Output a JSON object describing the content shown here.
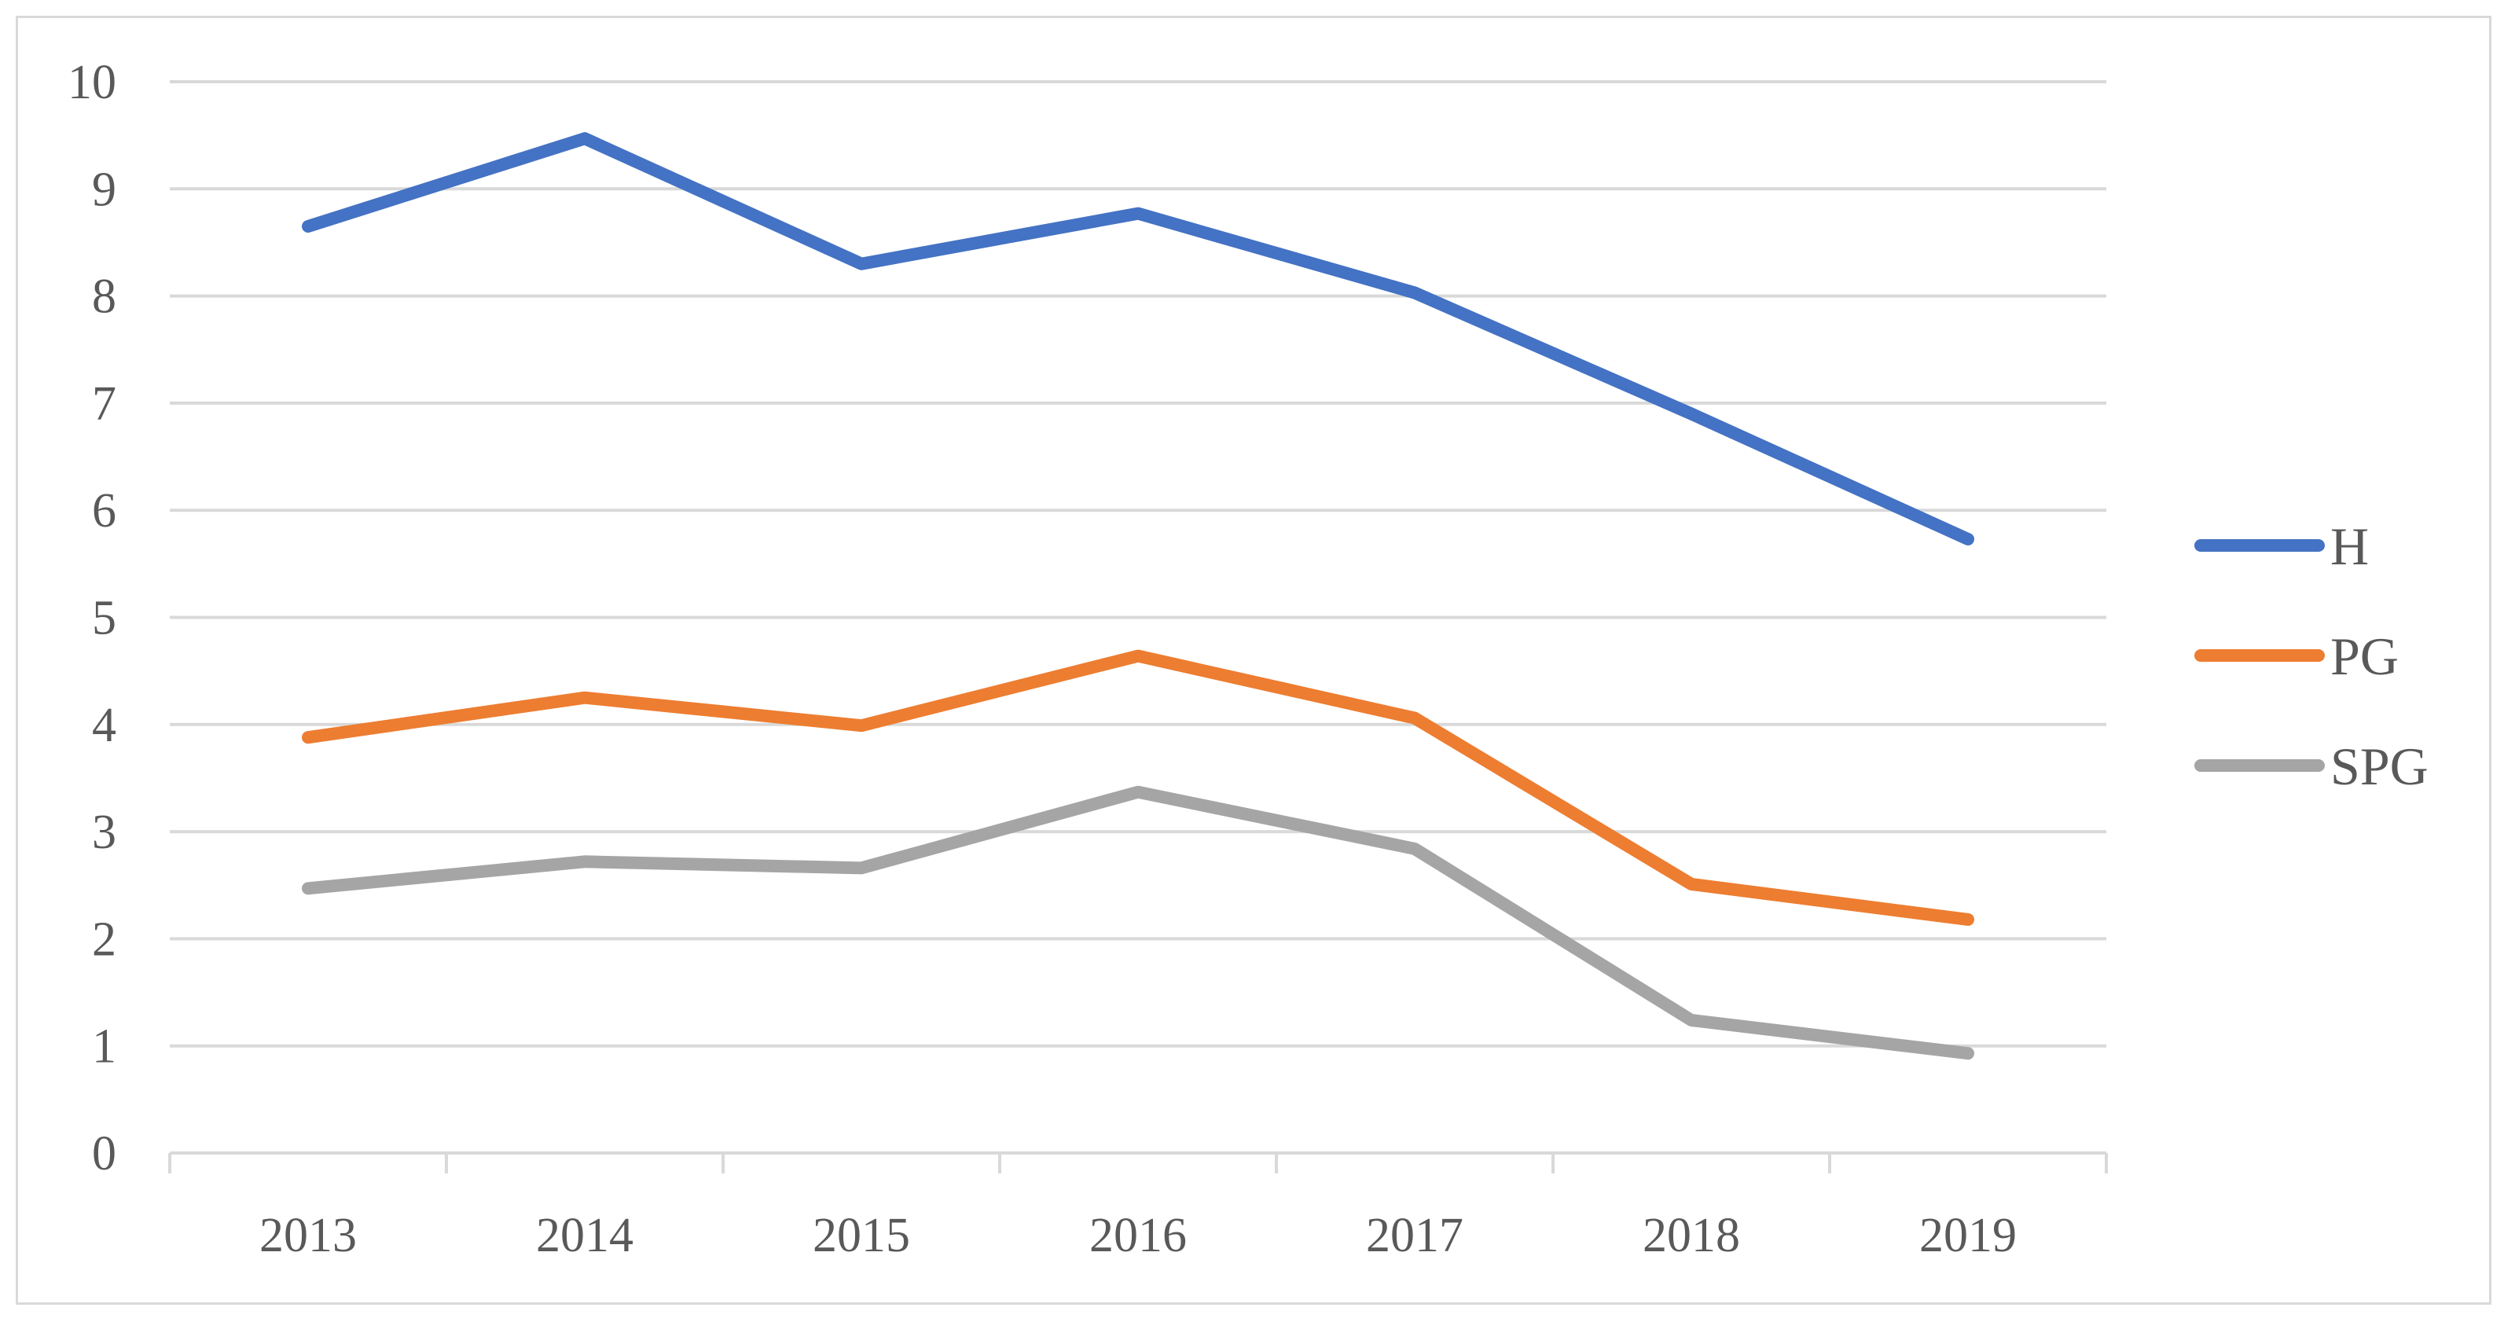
{
  "chart_data": {
    "type": "line",
    "title": "",
    "xlabel": "",
    "ylabel": "",
    "categories": [
      "2013",
      "2014",
      "2015",
      "2016",
      "2017",
      "2018",
      "2019"
    ],
    "ylim": [
      0,
      10
    ],
    "yticks": [
      "0",
      "1",
      "2",
      "3",
      "4",
      "5",
      "6",
      "7",
      "8",
      "9",
      "10"
    ],
    "grid": true,
    "legend_position": "right",
    "series": [
      {
        "name": "H",
        "color": "#4472c4",
        "values": [
          8.65,
          9.47,
          8.3,
          8.77,
          8.03,
          6.9,
          5.73
        ]
      },
      {
        "name": "PG",
        "color": "#ed7d31",
        "values": [
          3.88,
          4.25,
          3.99,
          4.64,
          4.06,
          2.51,
          2.18
        ]
      },
      {
        "name": "SPG",
        "color": "#a5a5a5",
        "values": [
          2.47,
          2.72,
          2.66,
          3.37,
          2.84,
          1.24,
          0.93
        ]
      }
    ]
  }
}
